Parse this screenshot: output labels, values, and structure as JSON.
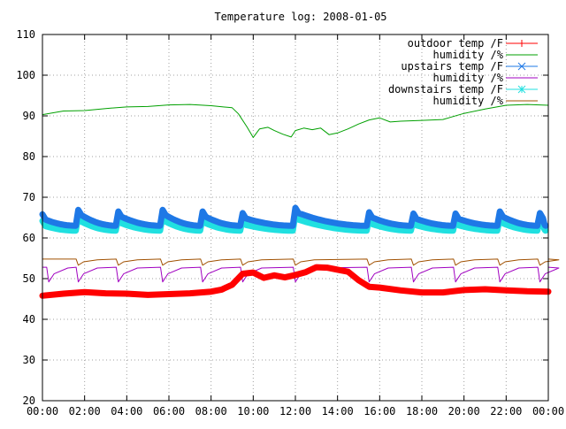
{
  "chart_data": {
    "type": "line",
    "title": "Temperature log: 2008-01-05",
    "xlabel": "",
    "ylabel": "",
    "xlim": [
      0,
      24
    ],
    "ylim": [
      20,
      110
    ],
    "grid": true,
    "legend_position": "top-right",
    "x_tick_labels": [
      "00:00",
      "02:00",
      "04:00",
      "06:00",
      "08:00",
      "10:00",
      "12:00",
      "14:00",
      "16:00",
      "18:00",
      "20:00",
      "22:00",
      "00:00"
    ],
    "y_ticks": [
      20,
      30,
      40,
      50,
      60,
      70,
      80,
      90,
      100,
      110
    ],
    "series": [
      {
        "name": "outdoor temp /F",
        "color": "#ff0000",
        "marker": "plus",
        "width": 7,
        "x": [
          0,
          1,
          2,
          3,
          4,
          5,
          6,
          7,
          8,
          8.5,
          9,
          9.5,
          10,
          10.5,
          11,
          11.5,
          12,
          12.5,
          13,
          13.5,
          14,
          14.5,
          15,
          15.5,
          16,
          17,
          18,
          19,
          20,
          21,
          22,
          23,
          24
        ],
        "y": [
          45.8,
          46.3,
          46.7,
          46.4,
          46.3,
          46.0,
          46.2,
          46.4,
          46.8,
          47.3,
          48.5,
          51.2,
          51.5,
          50.2,
          50.8,
          50.3,
          50.9,
          51.6,
          52.8,
          52.7,
          52.2,
          51.7,
          49.6,
          48.0,
          47.8,
          47.1,
          46.6,
          46.6,
          47.2,
          47.4,
          47.1,
          46.9,
          46.8
        ]
      },
      {
        "name": "humidity /%",
        "color": "#00a000",
        "marker": "none",
        "width": 1,
        "x": [
          0,
          1,
          2,
          3,
          4,
          5,
          6,
          7,
          8,
          9,
          9.3,
          9.7,
          10,
          10.3,
          10.7,
          11,
          11.4,
          11.8,
          12,
          12.4,
          12.8,
          13.2,
          13.6,
          14,
          14.5,
          15,
          15.5,
          16,
          16.5,
          17,
          18,
          19,
          20,
          21,
          22,
          23,
          24
        ],
        "y": [
          90.3,
          91.2,
          91.3,
          91.8,
          92.2,
          92.3,
          92.7,
          92.8,
          92.5,
          92.0,
          90.5,
          87.3,
          84.7,
          86.8,
          87.2,
          86.4,
          85.5,
          84.8,
          86.4,
          87.0,
          86.6,
          87.0,
          85.4,
          85.8,
          86.8,
          88.0,
          89.0,
          89.5,
          88.5,
          88.7,
          88.9,
          89.1,
          90.6,
          91.7,
          92.6,
          92.8,
          92.6
        ]
      },
      {
        "name": "upstairs temp /F",
        "color": "#1e78e6",
        "marker": "cross",
        "width": 7,
        "peak_x": [
          0,
          1.7,
          3.6,
          5.7,
          7.6,
          9.5,
          12.0,
          15.5,
          17.6,
          19.6,
          21.7,
          23.6
        ],
        "peak_y": [
          65.8,
          66.9,
          66.5,
          66.9,
          66.5,
          66.1,
          67.4,
          66.3,
          66.0,
          66.0,
          66.5,
          66.1
        ],
        "trough_y": 63.0
      },
      {
        "name": "humidity /%",
        "color": "#a000c0",
        "marker": "none",
        "width": 1,
        "dip_x": [
          0.3,
          1.7,
          3.6,
          5.7,
          7.6,
          9.5,
          12.0,
          15.5,
          17.6,
          19.6,
          21.7,
          23.6
        ],
        "level": 52.8,
        "dip_y": 49.2
      },
      {
        "name": "downstairs temp /F",
        "color": "#20e0e0",
        "marker": "star",
        "width": 7,
        "peak_x": [
          0,
          1.7,
          3.6,
          5.7,
          7.6,
          9.5,
          12.0,
          15.5,
          17.6,
          19.6,
          21.7,
          23.6
        ],
        "peak_y": [
          64.2,
          65.3,
          64.9,
          65.3,
          64.9,
          64.5,
          65.8,
          64.7,
          64.4,
          64.4,
          64.9,
          64.5
        ],
        "trough_y": 61.8
      },
      {
        "name": "humidity /%",
        "color": "#a05000",
        "marker": "none",
        "width": 1,
        "dip_x": [
          1.7,
          3.6,
          5.7,
          7.6,
          9.5,
          12.0,
          15.5,
          17.6,
          19.6,
          21.7,
          23.6
        ],
        "level": 54.8,
        "dip_y": 53.3
      }
    ]
  }
}
